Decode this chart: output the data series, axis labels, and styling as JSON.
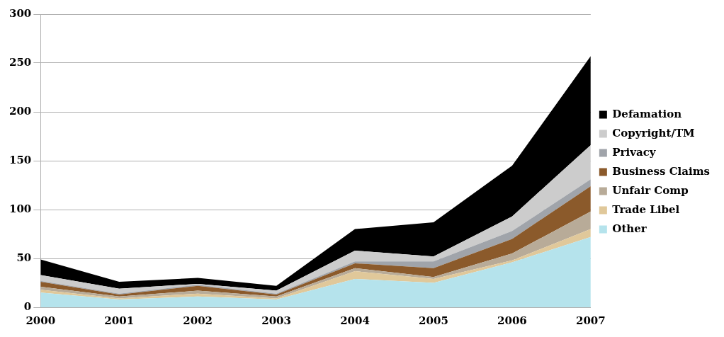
{
  "chart_data": {
    "type": "area",
    "stacked": true,
    "categories": [
      "2000",
      "2001",
      "2002",
      "2003",
      "2004",
      "2005",
      "2006",
      "2007"
    ],
    "series": [
      {
        "name": "Other",
        "color": "#b5e3ec",
        "values": [
          15,
          8,
          11,
          8,
          29,
          25,
          46,
          72
        ]
      },
      {
        "name": "Trade Libel",
        "color": "#e0c89a",
        "values": [
          3,
          1,
          3,
          1,
          8,
          4,
          2,
          8
        ]
      },
      {
        "name": "Unfair Comp",
        "color": "#b8ab98",
        "values": [
          3,
          2,
          3,
          2,
          3,
          2,
          7,
          18
        ]
      },
      {
        "name": "Business Claims",
        "color": "#8b5a2b",
        "values": [
          5,
          2,
          5,
          2,
          5,
          9,
          15,
          26
        ]
      },
      {
        "name": "Privacy",
        "color": "#a0a4aa",
        "values": [
          1,
          1,
          1,
          1,
          2,
          7,
          8,
          7
        ]
      },
      {
        "name": "Copyright/TM",
        "color": "#cccccc",
        "values": [
          6,
          5,
          1,
          3,
          11,
          5,
          15,
          35
        ]
      },
      {
        "name": "Defamation",
        "color": "#000000",
        "values": [
          16,
          7,
          6,
          5,
          22,
          35,
          52,
          91
        ]
      }
    ],
    "ylim": [
      0,
      300
    ],
    "yticks": [
      0,
      50,
      100,
      150,
      200,
      250,
      300
    ],
    "grid": "y",
    "legend": "right"
  }
}
